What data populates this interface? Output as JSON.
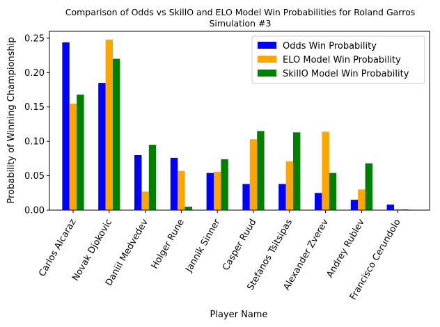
{
  "chart_data": {
    "type": "bar",
    "title": "Comparison of Odds vs SkillO and ELO Model Win Probabilities for Roland Garros",
    "subtitle": "Simulation #3",
    "xlabel": "Player Name",
    "ylabel": "Probability of Winning Championship",
    "ylim": [
      0,
      0.26
    ],
    "yticks": [
      "0.00",
      "0.05",
      "0.10",
      "0.15",
      "0.20",
      "0.25"
    ],
    "legend_position": "top-right",
    "grid": false,
    "categories": [
      "Carlos Alcaraz",
      "Novak Djokovic",
      "Daniil Medvedev",
      "Holger Rune",
      "Jannik Sinner",
      "Casper Ruud",
      "Stefanos Tsitsipas",
      "Alexander Zverev",
      "Andrey Rublev",
      "Francisco Cerundolo"
    ],
    "series": [
      {
        "name": "Odds Win Probability",
        "color": "#0000ff",
        "values": [
          0.244,
          0.185,
          0.08,
          0.076,
          0.054,
          0.038,
          0.038,
          0.025,
          0.015,
          0.008
        ]
      },
      {
        "name": "ELO Model Win Probability",
        "color": "#ffa500",
        "values": [
          0.155,
          0.248,
          0.027,
          0.057,
          0.056,
          0.103,
          0.071,
          0.114,
          0.03,
          0.001
        ]
      },
      {
        "name": "SkillO Model Win Probability",
        "color": "#008000",
        "values": [
          0.168,
          0.22,
          0.095,
          0.005,
          0.074,
          0.115,
          0.113,
          0.054,
          0.068,
          0.001
        ]
      }
    ]
  }
}
